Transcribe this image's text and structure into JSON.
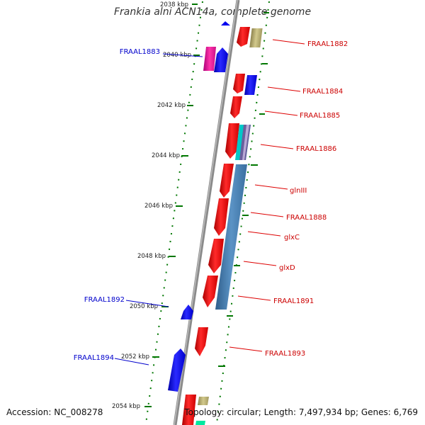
{
  "title": "Frankia alni ACN14a, complete genome",
  "accession": "Accession: NC_008278",
  "topology": "Topology: circular; Length: 7,497,934 bp; Genes: 6,769",
  "kbp_labels": [
    "2038 kbp",
    "2040 kbp",
    "2042 kbp",
    "2044 kbp",
    "2046 kbp",
    "2048 kbp",
    "2050 kbp",
    "2052 kbp",
    "2054 kbp"
  ],
  "forward_gene_labels": [
    "FRAAL1882",
    "FRAAL1884",
    "FRAAL1885",
    "FRAAL1886",
    "glnIII",
    "FRAAL1888",
    "glxC",
    "glxD",
    "FRAAL1891",
    "FRAAL1893"
  ],
  "reverse_gene_labels": [
    "FRAAL1883",
    "FRAAL1892",
    "FRAAL1894"
  ],
  "colors": {
    "forward": "#ee0000",
    "reverse": "#0000ee",
    "backbone": "#888888",
    "ticks": "#007700",
    "steelblue": "#4682b4",
    "khaki": "#b8ae6e",
    "magenta": "#ee1199",
    "cyan": "#00cccc"
  }
}
